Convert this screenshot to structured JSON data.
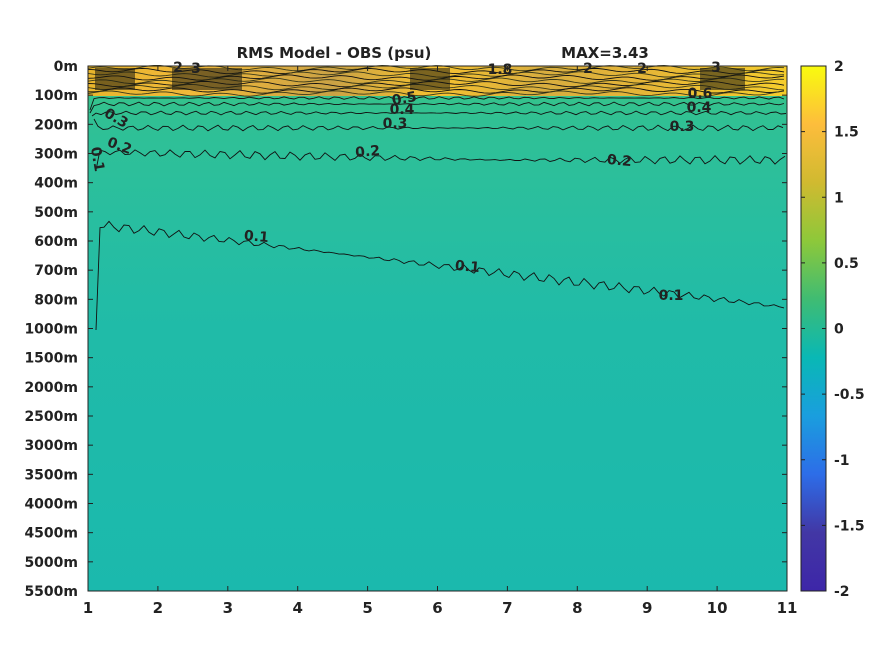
{
  "chart_data": {
    "type": "heatmap",
    "title": "RMS Model - OBS (psu)",
    "max_label": "MAX=3.43",
    "x_ticks": [
      1,
      2,
      3,
      4,
      5,
      6,
      7,
      8,
      9,
      10,
      11
    ],
    "xlim": [
      1,
      11
    ],
    "y_ticks": [
      "0m",
      "100m",
      "200m",
      "300m",
      "400m",
      "500m",
      "600m",
      "700m",
      "800m",
      "1000m",
      "1500m",
      "2000m",
      "2500m",
      "3000m",
      "3500m",
      "4000m",
      "4500m",
      "5000m",
      "5500m"
    ],
    "colorbar": {
      "ticks": [
        "2",
        "1.5",
        "1",
        "0.5",
        "0",
        "-0.5",
        "-1",
        "-1.5",
        "-2"
      ],
      "range": [
        -2,
        2
      ],
      "colors": [
        "#f9fb0e",
        "#fdbd3c",
        "#d0ba30",
        "#8dc83a",
        "#3fbc73",
        "#09b8b5",
        "#1a9ede",
        "#2d6de8",
        "#4237a5",
        "#3d26a8"
      ]
    },
    "contours": [
      {
        "level": 0.1,
        "labels": [
          "0.1",
          "0.1",
          "0.1",
          "0.1"
        ]
      },
      {
        "level": 0.2,
        "labels": [
          "0.2",
          "0.2",
          "0.2"
        ]
      },
      {
        "level": 0.3,
        "labels": [
          "0.3",
          "0.3",
          "0.3"
        ]
      },
      {
        "level": 0.4,
        "labels": [
          "0.4",
          "0.4"
        ]
      },
      {
        "level": 0.5,
        "labels": [
          "0.5"
        ]
      },
      {
        "level": 0.6,
        "labels": [
          "0.6"
        ]
      }
    ],
    "surface_labels": [
      "2",
      "3",
      "1.8",
      "2",
      "2",
      "3"
    ],
    "background_value": 0.0
  }
}
